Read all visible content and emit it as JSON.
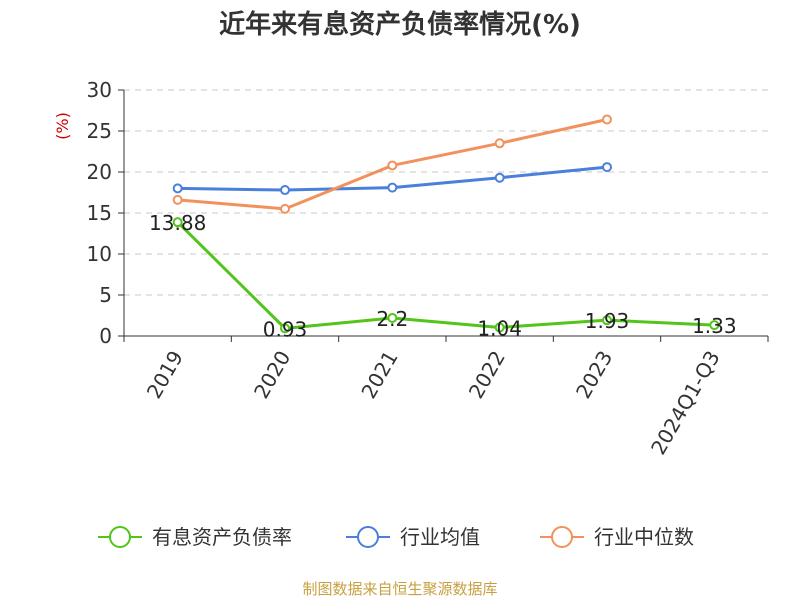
{
  "chart_data": {
    "type": "line",
    "title": "近年来有息资产负债率情况(%)",
    "ylabel": "(%)",
    "xlabel": "",
    "categories": [
      "2019",
      "2020",
      "2021",
      "2022",
      "2023",
      "2024Q1-Q3"
    ],
    "ylim": [
      0,
      30
    ],
    "yticks": [
      0,
      5,
      10,
      15,
      20,
      25,
      30
    ],
    "grid": true,
    "legend_position": "bottom",
    "series": [
      {
        "name": "有息资产负债率",
        "color": "#52c41a",
        "values": [
          13.88,
          0.93,
          2.2,
          1.04,
          1.93,
          1.33
        ],
        "labels": [
          "13.88",
          "0.93",
          "2.2",
          "1.04",
          "1.93",
          "1.33"
        ],
        "show_labels": true
      },
      {
        "name": "行业均值",
        "color": "#4a7fdb",
        "values": [
          18.0,
          17.8,
          18.1,
          19.3,
          20.6,
          null
        ],
        "show_labels": false
      },
      {
        "name": "行业中位数",
        "color": "#f2915c",
        "values": [
          16.6,
          15.5,
          20.8,
          23.5,
          26.4,
          null
        ],
        "show_labels": false
      }
    ]
  },
  "source": {
    "text": "制图数据来自恒生聚源数据库",
    "color": "#c8a040"
  },
  "colors": {
    "axis": "#333333",
    "grid": "#c8c8c8",
    "unit": "#cc0000",
    "title": "#333333"
  }
}
